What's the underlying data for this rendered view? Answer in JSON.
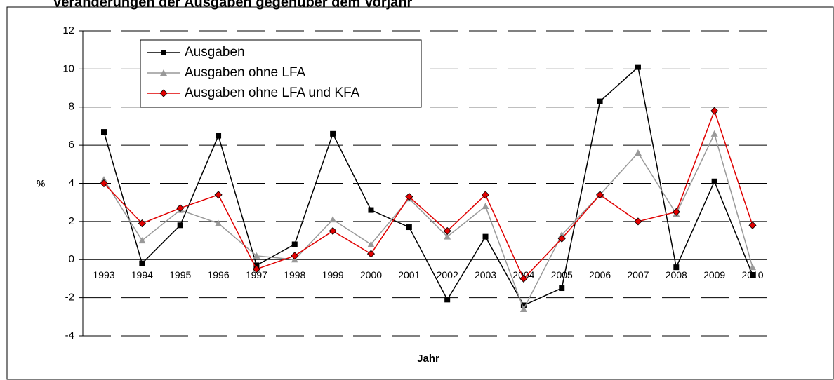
{
  "chart_data": {
    "type": "line",
    "title": "Veränderungen der Ausgaben gegenüber dem Vorjahr",
    "ylabel": "%",
    "xlabel": "Jahr",
    "categories": [
      "1993",
      "1994",
      "1995",
      "1996",
      "1997",
      "1998",
      "1999",
      "2000",
      "2001",
      "2002",
      "2003",
      "2004",
      "2005",
      "2006",
      "2007",
      "2008",
      "2009",
      "2010"
    ],
    "series": [
      {
        "name": "Ausgaben",
        "color": "#000000",
        "marker": "square",
        "values": [
          6.7,
          -0.2,
          1.8,
          6.5,
          -0.3,
          0.8,
          6.6,
          2.6,
          1.7,
          -2.1,
          1.2,
          -2.4,
          -1.5,
          8.3,
          10.1,
          -0.4,
          4.1,
          -0.8
        ]
      },
      {
        "name": "Ausgaben ohne LFA",
        "color": "#999999",
        "marker": "triangle",
        "values": [
          4.2,
          1.0,
          2.6,
          1.9,
          0.2,
          0.0,
          2.1,
          0.8,
          3.2,
          1.2,
          2.8,
          -2.6,
          1.3,
          3.4,
          5.6,
          2.4,
          6.6,
          -0.4
        ]
      },
      {
        "name": "Ausgaben ohne LFA und KFA",
        "color": "#e00000",
        "marker": "diamond",
        "values": [
          4.0,
          1.9,
          2.7,
          3.4,
          -0.5,
          0.2,
          1.5,
          0.3,
          3.3,
          1.5,
          3.4,
          -1.0,
          1.1,
          3.4,
          2.0,
          2.5,
          7.8,
          1.8
        ]
      }
    ],
    "ylim": [
      -4,
      12
    ],
    "yticks": [
      -4,
      -2,
      0,
      2,
      4,
      6,
      8,
      10,
      12
    ],
    "grid": true,
    "legend": "top-left"
  }
}
